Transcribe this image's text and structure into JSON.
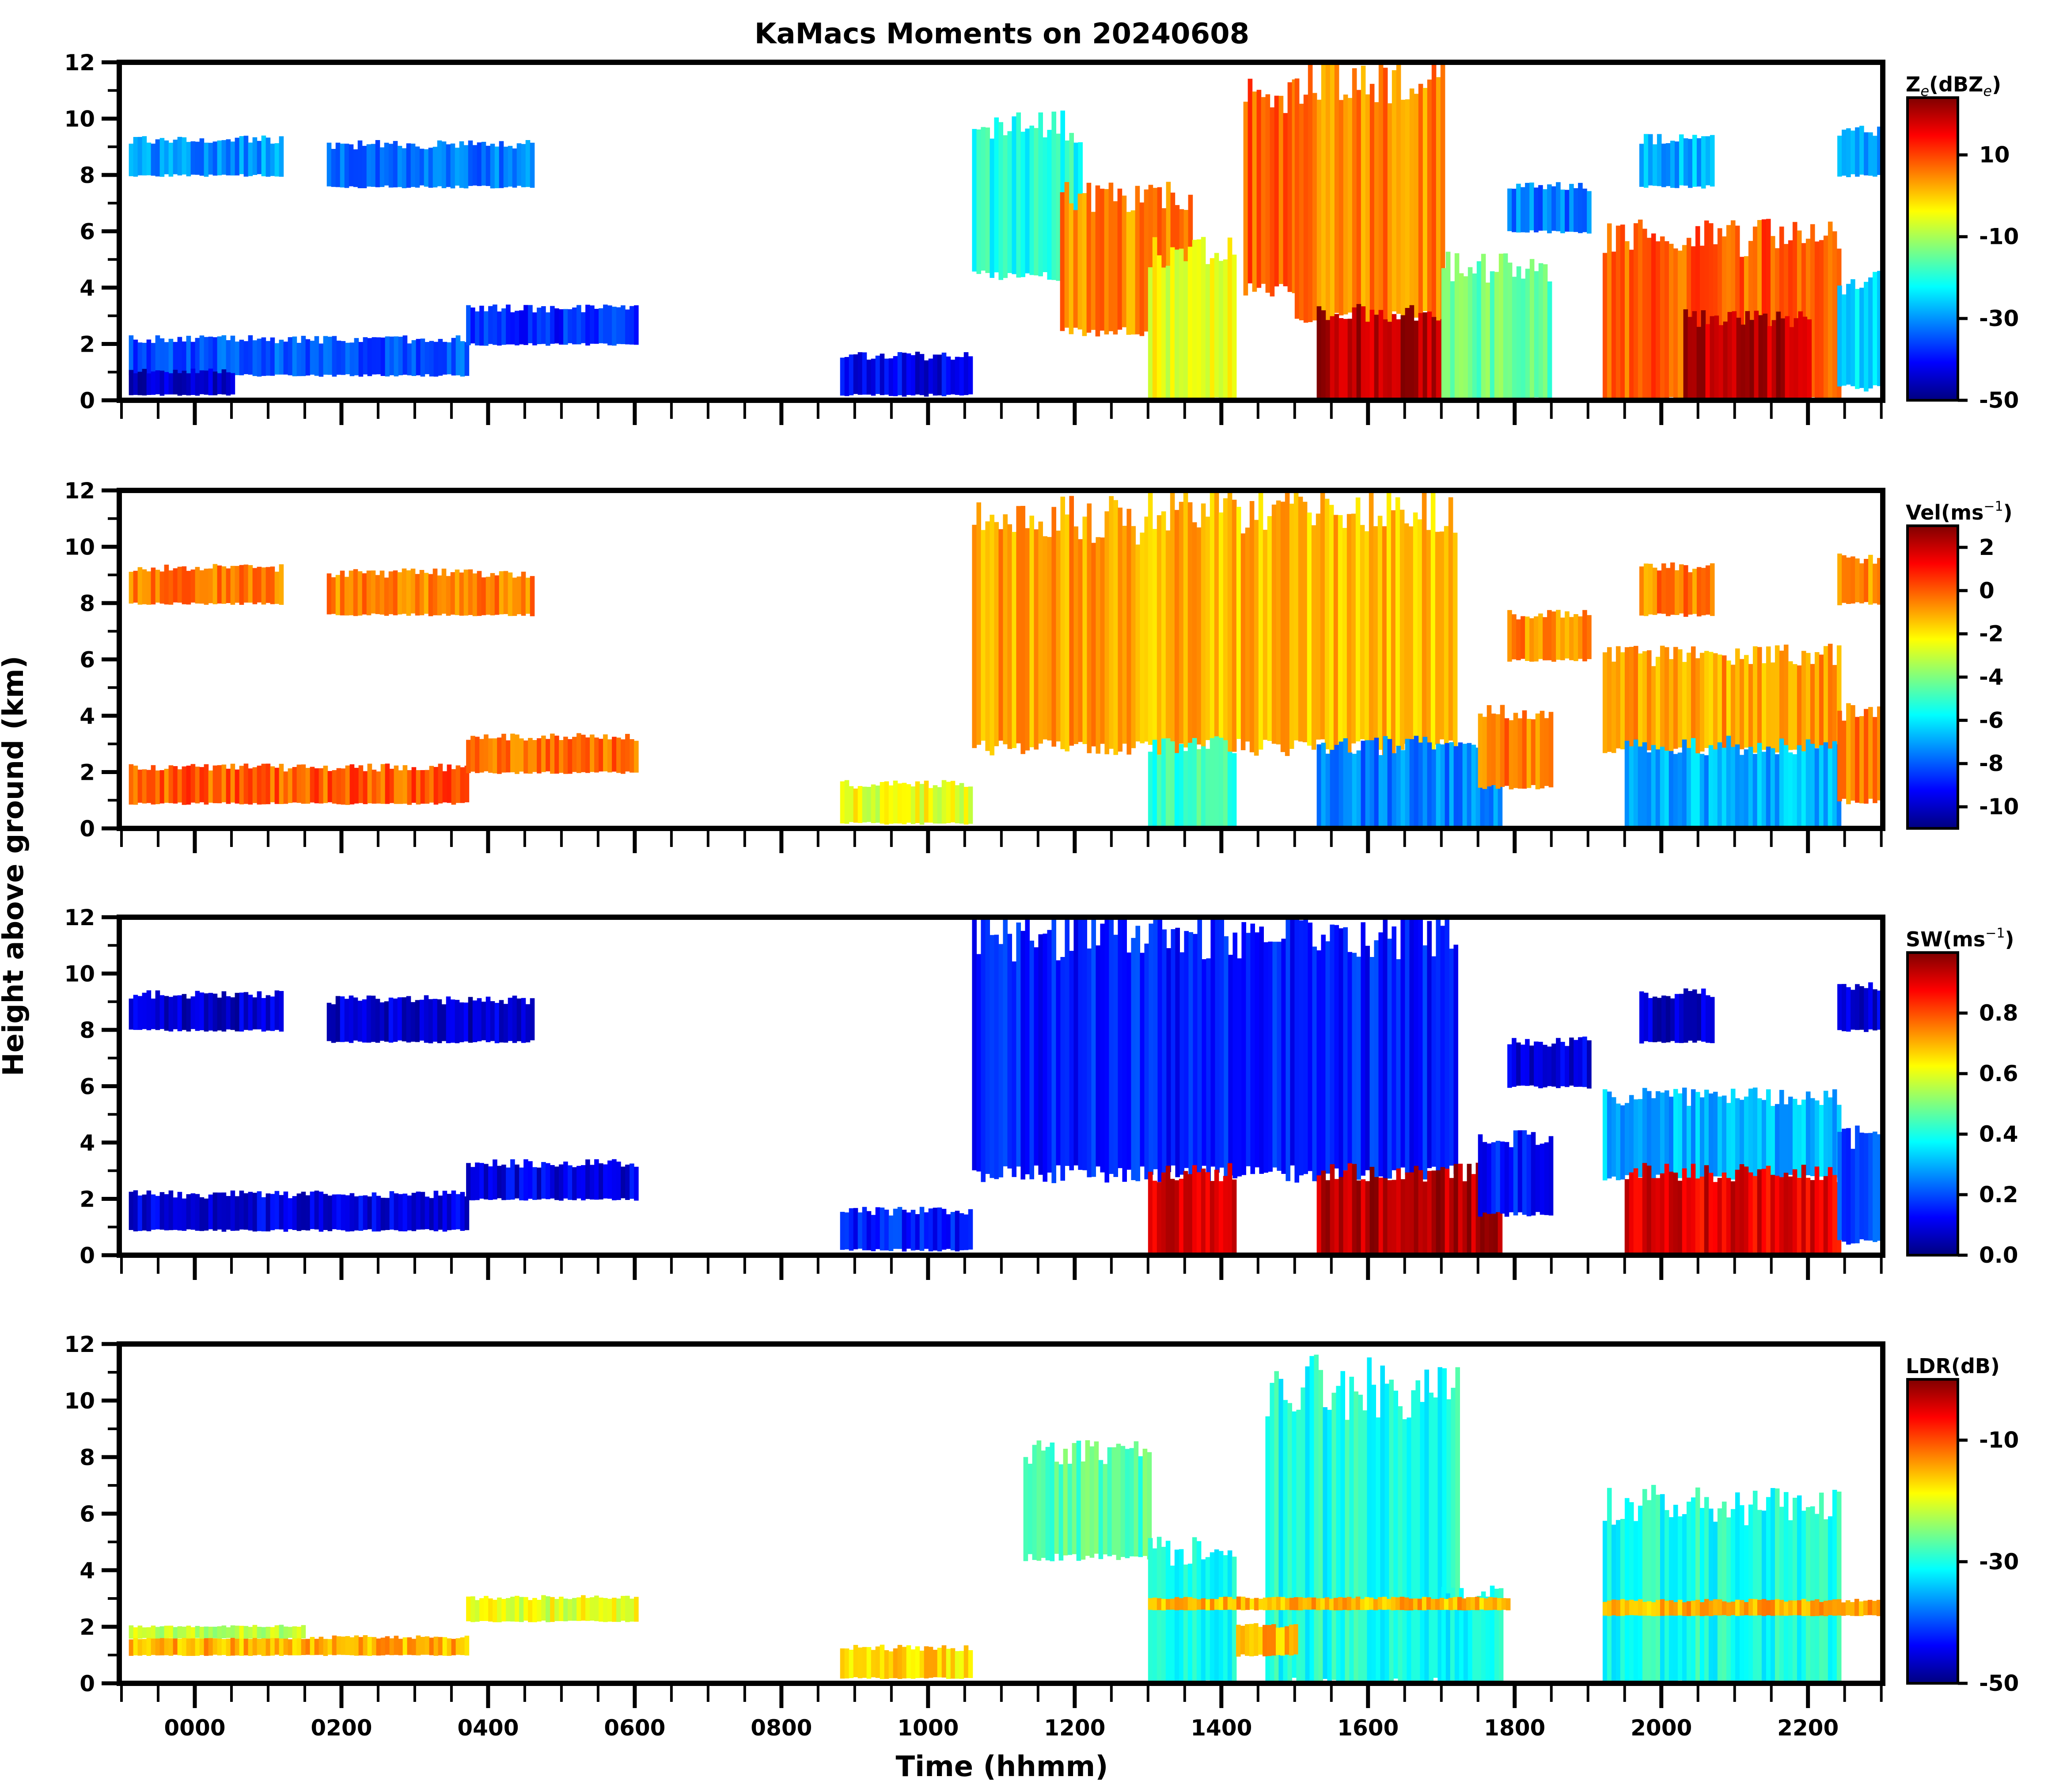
{
  "chart_data": {
    "type": "heatmap",
    "title": "KaMacs Moments on 20240608",
    "xlabel": "Time (hhmm)",
    "ylabel": "Height above ground (km)",
    "xlim_hours": [
      -1.03,
      23.02
    ],
    "ylim": [
      0,
      12
    ],
    "x_ticks": [
      {
        "hours": 0,
        "label": "0000"
      },
      {
        "hours": 2,
        "label": "0200"
      },
      {
        "hours": 4,
        "label": "0400"
      },
      {
        "hours": 6,
        "label": "0600"
      },
      {
        "hours": 8,
        "label": "0800"
      },
      {
        "hours": 10,
        "label": "1000"
      },
      {
        "hours": 12,
        "label": "1200"
      },
      {
        "hours": 14,
        "label": "1400"
      },
      {
        "hours": 16,
        "label": "1600"
      },
      {
        "hours": 18,
        "label": "1800"
      },
      {
        "hours": 20,
        "label": "2000"
      },
      {
        "hours": 22,
        "label": "2200"
      }
    ],
    "x_minor_step_hours": 0.5,
    "y_ticks": [
      {
        "value": 0,
        "label": "0"
      },
      {
        "value": 2,
        "label": "2"
      },
      {
        "value": 4,
        "label": "4"
      },
      {
        "value": 6,
        "label": "6"
      },
      {
        "value": 8,
        "label": "8"
      },
      {
        "value": 10,
        "label": "10"
      },
      {
        "value": 12,
        "label": "12"
      }
    ],
    "colormap": [
      "#00007f",
      "#0000ff",
      "#007fff",
      "#00ffff",
      "#7fff7f",
      "#ffff00",
      "#ff7f00",
      "#ff0000",
      "#7f0000"
    ],
    "panels": [
      {
        "name": "reflectivity",
        "colorbar_label": "Ze(dBZe)",
        "colorbar_label_main": "Z",
        "colorbar_label_sub": "e",
        "colorbar_label_mid": "(dBZ",
        "colorbar_label_sub2": "e",
        "colorbar_label_end": ")",
        "crange": [
          -50,
          24
        ],
        "colorbar_ticks": [
          {
            "value": 10,
            "label": "10"
          },
          {
            "value": -10,
            "label": "-10"
          },
          {
            "value": -30,
            "label": "-30"
          },
          {
            "value": -50,
            "label": "-50"
          }
        ],
        "echoes": [
          {
            "t0": -0.9,
            "t1": 1.2,
            "z0": 8.0,
            "z1": 9.2,
            "value": -30
          },
          {
            "t0": 1.8,
            "t1": 4.6,
            "z0": 7.6,
            "z1": 9.0,
            "value": -32
          },
          {
            "t0": -0.9,
            "t1": 3.7,
            "z0": 0.9,
            "z1": 2.1,
            "value": -35
          },
          {
            "t0": -0.9,
            "t1": 0.5,
            "z0": 0.2,
            "z1": 1.0,
            "value": -45
          },
          {
            "t0": 3.7,
            "t1": 6.0,
            "z0": 2.0,
            "z1": 3.2,
            "value": -38
          },
          {
            "t0": 10.6,
            "t1": 12.1,
            "z0": 4.5,
            "z1": 9.5,
            "value": -20
          },
          {
            "t0": 11.8,
            "t1": 13.6,
            "z0": 2.5,
            "z1": 7.0,
            "value": 5
          },
          {
            "t0": 13.0,
            "t1": 14.2,
            "z0": 0.0,
            "z1": 5.0,
            "value": -5
          },
          {
            "t0": 14.3,
            "t1": 15.0,
            "z0": 4.0,
            "z1": 10.5,
            "value": 8
          },
          {
            "t0": 15.0,
            "t1": 17.0,
            "z0": 3.0,
            "z1": 11.0,
            "value": 5
          },
          {
            "t0": 15.3,
            "t1": 17.2,
            "z0": 0.0,
            "z1": 3.0,
            "value": 20
          },
          {
            "t0": 17.0,
            "t1": 18.5,
            "z0": 0.0,
            "z1": 4.5,
            "value": -15
          },
          {
            "t0": 19.2,
            "t1": 22.4,
            "z0": 0.0,
            "z1": 5.5,
            "value": 8
          },
          {
            "t0": 20.3,
            "t1": 22.0,
            "z0": 0.0,
            "z1": 2.8,
            "value": 20
          },
          {
            "t0": 19.7,
            "t1": 20.7,
            "z0": 7.6,
            "z1": 9.2,
            "value": -28
          },
          {
            "t0": 22.4,
            "t1": 23.0,
            "z0": 0.5,
            "z1": 4.0,
            "value": -25
          },
          {
            "t0": 17.9,
            "t1": 19.0,
            "z0": 6.0,
            "z1": 7.5,
            "value": -32
          },
          {
            "t0": 22.4,
            "t1": 23.0,
            "z0": 8.0,
            "z1": 9.5,
            "value": -30
          },
          {
            "t0": 8.8,
            "t1": 10.6,
            "z0": 0.2,
            "z1": 1.5,
            "value": -42
          }
        ]
      },
      {
        "name": "velocity",
        "colorbar_label": "Vel(ms⁻¹)",
        "colorbar_label_main": "Vel(ms",
        "colorbar_label_sup": "−1",
        "colorbar_label_end": ")",
        "crange": [
          -11,
          3
        ],
        "colorbar_ticks": [
          {
            "value": 2,
            "label": "2"
          },
          {
            "value": 0,
            "label": "0"
          },
          {
            "value": -2,
            "label": "-2"
          },
          {
            "value": -4,
            "label": "-4"
          },
          {
            "value": -6,
            "label": "-6"
          },
          {
            "value": -8,
            "label": "-8"
          },
          {
            "value": -10,
            "label": "-10"
          }
        ],
        "echoes": [
          {
            "t0": -0.9,
            "t1": 1.2,
            "z0": 8.0,
            "z1": 9.2,
            "value": -0.5
          },
          {
            "t0": 1.8,
            "t1": 4.6,
            "z0": 7.6,
            "z1": 9.0,
            "value": -0.6
          },
          {
            "t0": -0.9,
            "t1": 3.7,
            "z0": 0.9,
            "z1": 2.1,
            "value": 0.0
          },
          {
            "t0": 3.7,
            "t1": 6.0,
            "z0": 2.0,
            "z1": 3.2,
            "value": -0.3
          },
          {
            "t0": 10.6,
            "t1": 13.0,
            "z0": 3.0,
            "z1": 10.5,
            "value": -1.0
          },
          {
            "t0": 13.0,
            "t1": 17.2,
            "z0": 3.0,
            "z1": 11.0,
            "value": -1.3
          },
          {
            "t0": 13.0,
            "t1": 14.2,
            "z0": 0.0,
            "z1": 2.8,
            "value": -5.0
          },
          {
            "t0": 15.3,
            "t1": 17.8,
            "z0": 0.0,
            "z1": 2.8,
            "value": -7.5
          },
          {
            "t0": 17.5,
            "t1": 18.5,
            "z0": 1.5,
            "z1": 4.0,
            "value": -0.5
          },
          {
            "t0": 19.2,
            "t1": 22.4,
            "z0": 2.8,
            "z1": 6.0,
            "value": -1.0
          },
          {
            "t0": 19.5,
            "t1": 22.4,
            "z0": 0.0,
            "z1": 2.8,
            "value": -6.8
          },
          {
            "t0": 22.4,
            "t1": 23.0,
            "z0": 1.0,
            "z1": 4.0,
            "value": -0.3
          },
          {
            "t0": 19.7,
            "t1": 20.7,
            "z0": 7.6,
            "z1": 9.2,
            "value": -0.5
          },
          {
            "t0": 17.9,
            "t1": 19.0,
            "z0": 6.0,
            "z1": 7.5,
            "value": -0.7
          },
          {
            "t0": 22.4,
            "t1": 23.0,
            "z0": 8.0,
            "z1": 9.5,
            "value": -0.6
          },
          {
            "t0": 8.8,
            "t1": 10.6,
            "z0": 0.2,
            "z1": 1.5,
            "value": -2.5
          }
        ]
      },
      {
        "name": "spectrum-width",
        "colorbar_label": "SW(ms⁻¹)",
        "colorbar_label_main": "SW(ms",
        "colorbar_label_sup": "−1",
        "colorbar_label_end": ")",
        "crange": [
          0.0,
          1.0
        ],
        "colorbar_ticks": [
          {
            "value": 0.8,
            "label": "0.8"
          },
          {
            "value": 0.6,
            "label": "0.6"
          },
          {
            "value": 0.4,
            "label": "0.4"
          },
          {
            "value": 0.2,
            "label": "0.2"
          },
          {
            "value": 0.0,
            "label": "0.0"
          }
        ],
        "echoes": [
          {
            "t0": -0.9,
            "t1": 1.2,
            "z0": 8.0,
            "z1": 9.2,
            "value": 0.08
          },
          {
            "t0": 1.8,
            "t1": 4.6,
            "z0": 7.6,
            "z1": 9.0,
            "value": 0.08
          },
          {
            "t0": -0.9,
            "t1": 3.7,
            "z0": 0.9,
            "z1": 2.1,
            "value": 0.1
          },
          {
            "t0": 3.7,
            "t1": 6.0,
            "z0": 2.0,
            "z1": 3.2,
            "value": 0.1
          },
          {
            "t0": 10.6,
            "t1": 17.2,
            "z0": 3.0,
            "z1": 11.0,
            "value": 0.15
          },
          {
            "t0": 13.0,
            "t1": 14.2,
            "z0": 0.0,
            "z1": 2.8,
            "value": 0.9
          },
          {
            "t0": 15.3,
            "t1": 17.8,
            "z0": 0.0,
            "z1": 2.8,
            "value": 0.95
          },
          {
            "t0": 17.5,
            "t1": 18.5,
            "z0": 1.5,
            "z1": 4.0,
            "value": 0.15
          },
          {
            "t0": 19.2,
            "t1": 22.4,
            "z0": 2.8,
            "z1": 5.5,
            "value": 0.3
          },
          {
            "t0": 19.5,
            "t1": 22.4,
            "z0": 0.0,
            "z1": 2.8,
            "value": 0.9
          },
          {
            "t0": 22.4,
            "t1": 23.0,
            "z0": 0.5,
            "z1": 4.0,
            "value": 0.2
          },
          {
            "t0": 19.7,
            "t1": 20.7,
            "z0": 7.6,
            "z1": 9.2,
            "value": 0.08
          },
          {
            "t0": 17.9,
            "t1": 19.0,
            "z0": 6.0,
            "z1": 7.5,
            "value": 0.1
          },
          {
            "t0": 22.4,
            "t1": 23.0,
            "z0": 8.0,
            "z1": 9.5,
            "value": 0.08
          },
          {
            "t0": 8.8,
            "t1": 10.6,
            "z0": 0.2,
            "z1": 1.5,
            "value": 0.15
          }
        ]
      },
      {
        "name": "ldr",
        "colorbar_label": "LDR(dB)",
        "colorbar_label_main": "LDR(dB)",
        "crange": [
          -50,
          0
        ],
        "colorbar_ticks": [
          {
            "value": -10,
            "label": "-10"
          },
          {
            "value": -30,
            "label": "-30"
          },
          {
            "value": -50,
            "label": "-50"
          }
        ],
        "echoes": [
          {
            "t0": -0.9,
            "t1": 3.7,
            "z0": 1.0,
            "z1": 1.6,
            "value": -15
          },
          {
            "t0": -0.9,
            "t1": 1.5,
            "z0": 1.6,
            "z1": 2.0,
            "value": -22
          },
          {
            "t0": 3.7,
            "t1": 6.0,
            "z0": 2.2,
            "z1": 3.0,
            "value": -20
          },
          {
            "t0": 11.3,
            "t1": 13.0,
            "z0": 4.5,
            "z1": 8.0,
            "value": -27
          },
          {
            "t0": 13.0,
            "t1": 14.2,
            "z0": 0.0,
            "z1": 4.5,
            "value": -30
          },
          {
            "t0": 14.6,
            "t1": 17.2,
            "z0": 0.0,
            "z1": 10.0,
            "value": -30
          },
          {
            "t0": 17.0,
            "t1": 17.8,
            "z0": 0.0,
            "z1": 3.0,
            "value": -31
          },
          {
            "t0": 13.0,
            "t1": 17.9,
            "z0": 2.6,
            "z1": 3.0,
            "value": -15
          },
          {
            "t0": 19.2,
            "t1": 22.4,
            "z0": 0.0,
            "z1": 6.0,
            "value": -30
          },
          {
            "t0": 19.2,
            "t1": 23.0,
            "z0": 2.4,
            "z1": 2.9,
            "value": -15
          },
          {
            "t0": 14.2,
            "t1": 15.0,
            "z0": 1.0,
            "z1": 2.0,
            "value": -15
          },
          {
            "t0": 8.8,
            "t1": 10.6,
            "z0": 0.2,
            "z1": 1.2,
            "value": -17
          }
        ]
      }
    ]
  }
}
